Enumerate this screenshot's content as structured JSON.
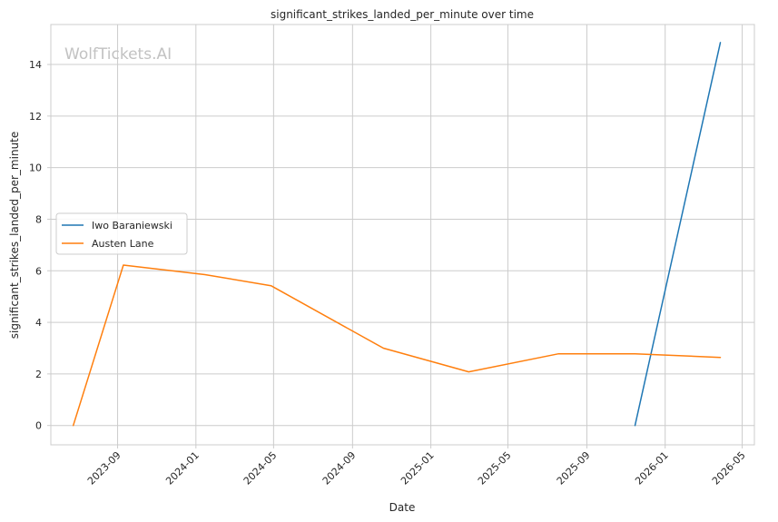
{
  "chart_data": {
    "type": "line",
    "title": "significant_strikes_landed_per_minute over time",
    "xlabel": "Date",
    "ylabel": "significant_strikes_landed_per_minute",
    "watermark": "WolfTickets.AI",
    "x_range": [
      "2023-05-20",
      "2026-05-20"
    ],
    "ylim": [
      -0.75,
      15.55
    ],
    "x_ticks": [
      {
        "date": "2023-09-01",
        "label": "2023-09"
      },
      {
        "date": "2024-01-01",
        "label": "2024-01"
      },
      {
        "date": "2024-05-01",
        "label": "2024-05"
      },
      {
        "date": "2024-09-01",
        "label": "2024-09"
      },
      {
        "date": "2025-01-01",
        "label": "2025-01"
      },
      {
        "date": "2025-05-01",
        "label": "2025-05"
      },
      {
        "date": "2025-09-01",
        "label": "2025-09"
      },
      {
        "date": "2026-01-01",
        "label": "2026-01"
      },
      {
        "date": "2026-05-01",
        "label": "2026-05"
      }
    ],
    "y_ticks": [
      0,
      2,
      4,
      6,
      8,
      10,
      12,
      14
    ],
    "grid": true,
    "legend_position": "center-left",
    "series": [
      {
        "name": "Iwo Baraniewski",
        "color": "#1f77b4",
        "x": [
          "2025-11-15",
          "2026-03-28"
        ],
        "y": [
          0,
          14.85
        ]
      },
      {
        "name": "Austen Lane",
        "color": "#ff7f0e",
        "x": [
          "2023-06-24",
          "2023-09-10",
          "2024-01-15",
          "2024-04-27",
          "2024-10-19",
          "2025-03-01",
          "2025-07-19",
          "2025-11-15",
          "2026-03-28"
        ],
        "y": [
          0,
          6.22,
          5.85,
          5.42,
          3.0,
          2.08,
          2.78,
          2.78,
          2.64
        ]
      }
    ]
  }
}
